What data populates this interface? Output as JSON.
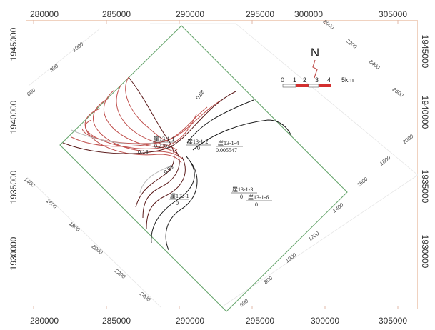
{
  "map": {
    "x_ticks": [
      "280000",
      "285000",
      "290000",
      "295000",
      "300000",
      "305000"
    ],
    "y_ticks_left": [
      "1945000",
      "1940000",
      "1935000",
      "1930000"
    ],
    "y_ticks_right": [
      "1945000",
      "1940000",
      "1935000",
      "1930000"
    ],
    "grid_labels": {
      "top_left": [
        "1000",
        "800",
        "600"
      ],
      "top_right": [
        "2000",
        "2200",
        "2400",
        "2600"
      ],
      "right": [
        "2000",
        "1800",
        "1600",
        "1400"
      ],
      "bottom_right": [
        "1200",
        "1000",
        "800",
        "600"
      ],
      "bottom_left": [
        "1400",
        "1600",
        "1800",
        "2000",
        "2200",
        "2400"
      ]
    },
    "north": {
      "letter": "N"
    },
    "scale": {
      "ticks": [
        "0",
        "1",
        "2",
        "3",
        "4"
      ],
      "unit": "5km"
    },
    "wells": [
      {
        "name": "崖13-1-1",
        "value": "0.2302"
      },
      {
        "name": "崖13-1-2",
        "value": "0"
      },
      {
        "name": "崖13-1-4",
        "value": "0.005547"
      },
      {
        "name": "崖192-1",
        "value": "0"
      },
      {
        "name": "崖13-1-3",
        "value": "0"
      },
      {
        "name": "崖13-1-6",
        "value": "0"
      }
    ],
    "contour_labels": [
      "0.08",
      "0.18",
      "0.08"
    ],
    "colors": {
      "boundary": "#6aa870",
      "contour_red": "#c0504d",
      "contour_dark": "#5a1a1a",
      "contour_black": "#1a1a1a",
      "frame": "#f0d2c0"
    }
  }
}
